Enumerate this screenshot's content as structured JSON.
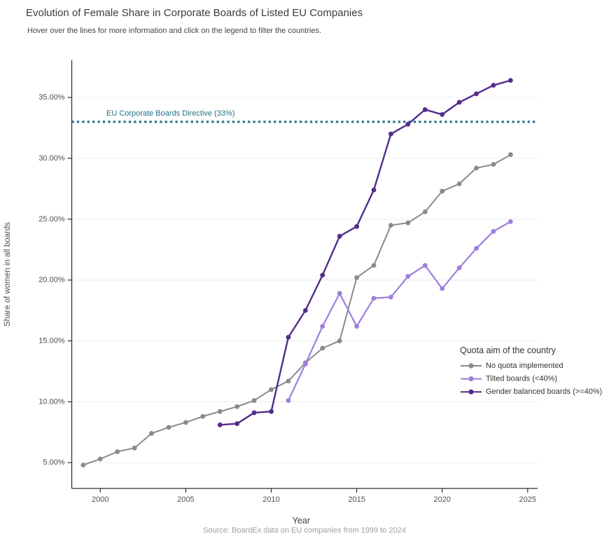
{
  "header": {
    "title": "Evolution of Female Share in Corporate Boards of Listed EU Companies",
    "subtitle": "Hover over the lines for more information and click on the legend to filter the countries."
  },
  "caption": "Source: BoardEx data on EU companies from 1999 to 2024",
  "colors": {
    "reference": "#236e85",
    "grid": "#ececec",
    "axis": "#2f2f2f",
    "tick_text": "#4f4f4f",
    "legend_text": "#333333"
  },
  "chart_data": {
    "type": "line",
    "title": "Evolution of Female Share in Corporate Boards of Listed EU Companies",
    "xlabel": "Year",
    "ylabel": "Share of women in all boards",
    "xlim": [
      1998.2,
      2025.6
    ],
    "ylim": [
      2.8,
      38.6
    ],
    "grid": "horizontal-major",
    "x_ticks": [
      2000,
      2005,
      2010,
      2015,
      2020,
      2025
    ],
    "y_ticks": [
      5,
      10,
      15,
      20,
      25,
      30,
      35
    ],
    "y_tick_labels": [
      "5.00%",
      "10.00%",
      "15.00%",
      "20.00%",
      "25.00%",
      "30.00%",
      "35.00%"
    ],
    "reference_line": {
      "value": 33,
      "label": "EU Corporate Boards Directive (33%)",
      "color": "#236e85",
      "style": "dotted"
    },
    "legend": {
      "title": "Quota aim of the country",
      "position": "inside-right"
    },
    "series": [
      {
        "id": "no-quota",
        "name": "No quota implemented",
        "color": "#8a8a8a",
        "years": [
          1999,
          2000,
          2001,
          2002,
          2003,
          2004,
          2005,
          2006,
          2007,
          2008,
          2009,
          2010,
          2011,
          2012,
          2013,
          2014,
          2015,
          2016,
          2017,
          2018,
          2019,
          2020,
          2021,
          2022,
          2023,
          2024
        ],
        "values": [
          4.8,
          5.3,
          5.9,
          6.2,
          7.4,
          7.9,
          8.3,
          8.8,
          9.2,
          9.6,
          10.1,
          11.0,
          11.7,
          13.2,
          14.4,
          15.0,
          20.2,
          21.2,
          24.5,
          24.7,
          25.6,
          27.3,
          27.9,
          29.2,
          29.5,
          30.3
        ]
      },
      {
        "id": "tilted",
        "name": "Tilted boards (<40%)",
        "color": "#9e7edb",
        "years": [
          2011,
          2012,
          2013,
          2014,
          2015,
          2016,
          2017,
          2018,
          2019,
          2020,
          2021,
          2022,
          2023,
          2024
        ],
        "values": [
          10.1,
          13.1,
          16.2,
          18.9,
          16.2,
          18.5,
          18.6,
          20.3,
          21.2,
          19.3,
          21.0,
          22.6,
          24.0,
          24.8
        ]
      },
      {
        "id": "balanced",
        "name": "Gender balanced boards (>=40%)",
        "color": "#522d8a",
        "years": [
          2007,
          2008,
          2009,
          2010,
          2011,
          2012,
          2013,
          2014,
          2015,
          2016,
          2017,
          2018,
          2019,
          2020,
          2021,
          2022,
          2023,
          2024
        ],
        "values": [
          8.1,
          8.2,
          9.1,
          9.2,
          15.3,
          17.5,
          20.4,
          23.6,
          24.4,
          27.4,
          32.0,
          32.8,
          34.0,
          33.6,
          34.6,
          35.3,
          36.0,
          36.4
        ]
      }
    ]
  }
}
